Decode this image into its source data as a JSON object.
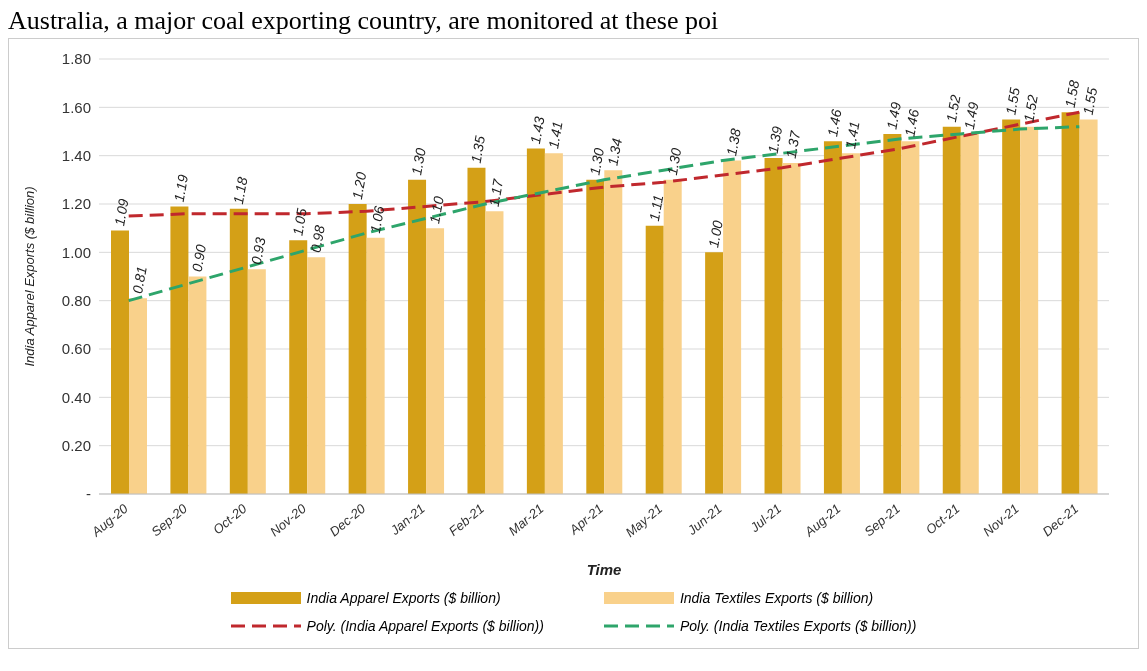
{
  "chart_data": {
    "type": "bar",
    "xlabel": "Time",
    "ylabel": "India Apparel Exports ($ billion)",
    "annotations": [
      "Australia, a major coal exporting country, are monitored at these poi"
    ],
    "categories": [
      "Aug-20",
      "Sep-20",
      "Oct-20",
      "Nov-20",
      "Dec-20",
      "Jan-21",
      "Feb-21",
      "Mar-21",
      "Apr-21",
      "May-21",
      "Jun-21",
      "Jul-21",
      "Aug-21",
      "Sep-21",
      "Oct-21",
      "Nov-21",
      "Dec-21"
    ],
    "series": [
      {
        "name": "India Apparel Exports ($ billion)",
        "color": "#d4a017",
        "values": [
          1.09,
          1.19,
          1.18,
          1.05,
          1.2,
          1.3,
          1.35,
          1.43,
          1.3,
          1.11,
          1.0,
          1.39,
          1.46,
          1.49,
          1.52,
          1.55,
          1.58
        ],
        "value_labels": [
          "1.09",
          "1.19",
          "1.18",
          "1.05",
          "1.20",
          "1.30",
          "1.35",
          "1.43",
          "1.30",
          "1.11",
          "1.00",
          "1.39",
          "1.46",
          "1.49",
          "1.52",
          "1.55",
          "1.58"
        ]
      },
      {
        "name": "India Textiles Exports ($ billion)",
        "color": "#f9d18b",
        "values": [
          0.81,
          0.9,
          0.93,
          0.98,
          1.06,
          1.1,
          1.17,
          1.41,
          1.34,
          1.3,
          1.38,
          1.37,
          1.41,
          1.46,
          1.49,
          1.52,
          1.55
        ],
        "value_labels": [
          "0.81",
          "0.90",
          "0.93",
          "0.98",
          "1.06",
          "1.10",
          "1.17",
          "1.41",
          "1.34",
          "1.30",
          "1.38",
          "1.37",
          "1.41",
          "1.46",
          "1.49",
          "1.52",
          "1.55"
        ]
      },
      {
        "name": "Poly. (India Apparel Exports ($ billion))",
        "type": "line",
        "color": "#c0282d",
        "line_style": "dashed",
        "marker": "none",
        "values": [
          1.15,
          1.16,
          1.16,
          1.16,
          1.17,
          1.19,
          1.21,
          1.24,
          1.27,
          1.29,
          1.32,
          1.35,
          1.39,
          1.43,
          1.48,
          1.53,
          1.58
        ]
      },
      {
        "name": "Poly. (India Textiles Exports ($ billion))",
        "type": "line",
        "color": "#2ea56b",
        "line_style": "dashed",
        "marker": "none",
        "values": [
          0.8,
          0.87,
          0.94,
          1.01,
          1.08,
          1.14,
          1.2,
          1.25,
          1.3,
          1.34,
          1.38,
          1.41,
          1.44,
          1.47,
          1.49,
          1.51,
          1.52
        ]
      }
    ],
    "ylim": [
      0,
      1.8
    ],
    "yticks": [
      {
        "value": 0,
        "label": "-"
      },
      {
        "value": 0.2,
        "label": "0.20"
      },
      {
        "value": 0.4,
        "label": "0.40"
      },
      {
        "value": 0.6,
        "label": "0.60"
      },
      {
        "value": 0.8,
        "label": "0.80"
      },
      {
        "value": 1.0,
        "label": "1.00"
      },
      {
        "value": 1.2,
        "label": "1.20"
      },
      {
        "value": 1.4,
        "label": "1.40"
      },
      {
        "value": 1.6,
        "label": "1.60"
      },
      {
        "value": 1.8,
        "label": "1.80"
      }
    ],
    "grid": "y",
    "legend": "bottom"
  }
}
